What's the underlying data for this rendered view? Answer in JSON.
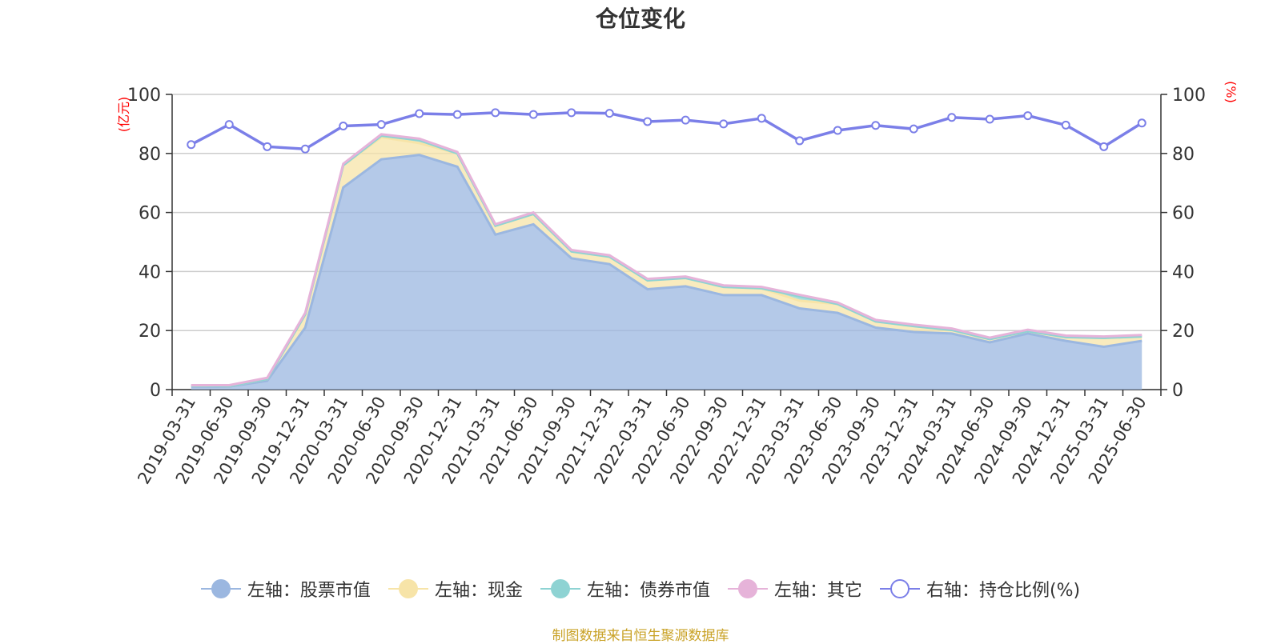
{
  "chart_data": {
    "type": "area",
    "title": "仓位变化",
    "left_axis_unit": "(亿元)",
    "right_axis_unit": "(%)",
    "left_ylim": [
      0,
      100
    ],
    "right_ylim": [
      0,
      100
    ],
    "y_ticks": [
      0,
      20,
      40,
      60,
      80,
      100
    ],
    "grid": true,
    "legend_position": "bottom",
    "categories": [
      "2019-03-31",
      "2019-06-30",
      "2019-09-30",
      "2019-12-31",
      "2020-03-31",
      "2020-06-30",
      "2020-09-30",
      "2020-12-31",
      "2021-03-31",
      "2021-06-30",
      "2021-09-30",
      "2021-12-31",
      "2022-03-31",
      "2022-06-30",
      "2022-09-30",
      "2022-12-31",
      "2023-03-31",
      "2023-06-30",
      "2023-09-30",
      "2023-12-31",
      "2024-03-31",
      "2024-06-30",
      "2024-09-30",
      "2024-12-31",
      "2025-03-31",
      "2025-06-30"
    ],
    "series": [
      {
        "name": "左轴：股票市值",
        "axis": "left",
        "stacked": true,
        "color": "#9bb7e0",
        "values": [
          1.0,
          1.0,
          3.0,
          21.0,
          68.5,
          78.0,
          79.5,
          75.5,
          52.5,
          56.0,
          44.5,
          42.5,
          34.0,
          35.0,
          32.0,
          32.0,
          27.5,
          26.0,
          21.0,
          19.5,
          19.0,
          16.0,
          19.0,
          16.5,
          14.5,
          16.5
        ]
      },
      {
        "name": "左轴：现金",
        "axis": "left",
        "stacked": true,
        "color": "#f7e4a8",
        "values": [
          0.3,
          0.2,
          0.6,
          4.5,
          7.5,
          7.5,
          4.0,
          4.5,
          3.0,
          3.5,
          2.3,
          2.5,
          3.0,
          2.8,
          2.8,
          2.3,
          2.6,
          3.0,
          2.1,
          2.0,
          1.2,
          1.1,
          0.8,
          1.3,
          3.0,
          1.5
        ]
      },
      {
        "name": "左轴：债券市值",
        "axis": "left",
        "stacked": true,
        "color": "#8ed3d3",
        "values": [
          0,
          0,
          0,
          0,
          0,
          0.5,
          1.0,
          0,
          0,
          0,
          0,
          0,
          0,
          0,
          0,
          0,
          1.5,
          0,
          0,
          0,
          0,
          0,
          0,
          0,
          0,
          0
        ]
      },
      {
        "name": "左轴：其它",
        "axis": "left",
        "stacked": true,
        "color": "#e6b3d9",
        "values": [
          0.2,
          0.3,
          0.4,
          0.5,
          0.5,
          0.5,
          0.5,
          0.5,
          0.5,
          0.5,
          0.5,
          0.5,
          0.5,
          0.5,
          0.5,
          0.5,
          0.5,
          0.5,
          0.5,
          0.5,
          0.5,
          0.5,
          0.5,
          0.5,
          0.5,
          0.5
        ]
      },
      {
        "name": "右轴：持仓比例(%)",
        "axis": "right",
        "stacked": false,
        "color": "#7b7fe8",
        "values": [
          83.0,
          89.8,
          82.3,
          81.5,
          89.3,
          89.8,
          93.5,
          93.2,
          93.8,
          93.2,
          93.8,
          93.6,
          90.8,
          91.3,
          90.0,
          91.9,
          84.3,
          87.8,
          89.5,
          88.3,
          92.2,
          91.6,
          92.8,
          89.6,
          82.3,
          90.3
        ]
      }
    ],
    "source_note": "制图数据来自恒生聚源数据库"
  }
}
